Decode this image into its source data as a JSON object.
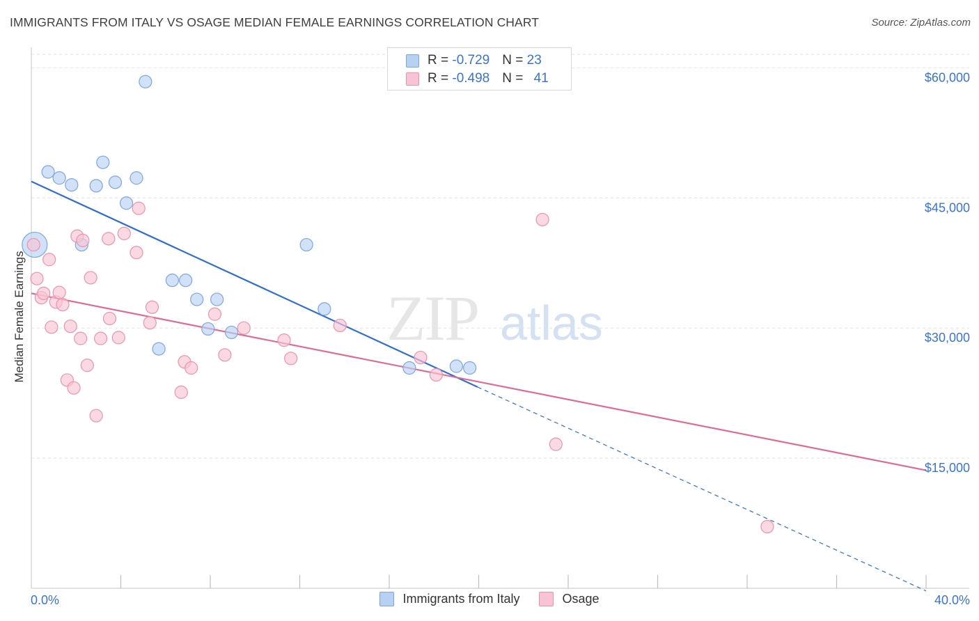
{
  "header": {
    "title": "IMMIGRANTS FROM ITALY VS OSAGE MEDIAN FEMALE EARNINGS CORRELATION CHART",
    "source": "Source: ZipAtlas.com"
  },
  "watermark": {
    "zip": "ZIP",
    "atlas": "atlas"
  },
  "legend": {
    "rows": [
      {
        "r_label": "R = ",
        "r_value": "-0.729",
        "n_label": "N = ",
        "n_value": "23"
      },
      {
        "r_label": "R = ",
        "r_value": "-0.498",
        "n_label": "N = ",
        "n_value": "41"
      }
    ]
  },
  "colors": {
    "italy_fill": "#b8d1f2",
    "italy_stroke": "#7ea6de",
    "italy_line": "#2f6fcf",
    "osage_fill": "#f8c4d4",
    "osage_stroke": "#eb93b0",
    "osage_line": "#e06a93",
    "grid": "#e3e3e3",
    "tick_label": "#3a74d1"
  },
  "chart_data": {
    "type": "scatter",
    "title": "IMMIGRANTS FROM ITALY VS OSAGE MEDIAN FEMALE EARNINGS CORRELATION CHART",
    "xlabel": "",
    "ylabel": "Median Female Earnings",
    "xlim": [
      0,
      40
    ],
    "ylim": [
      0,
      63000
    ],
    "x_tick_labels": [
      {
        "value": 0,
        "label": "0.0%"
      },
      {
        "value": 40,
        "label": "40.0%"
      }
    ],
    "y_ticks": [
      {
        "value": 15000,
        "label": "$15,000"
      },
      {
        "value": 30000,
        "label": "$30,000"
      },
      {
        "value": 45000,
        "label": "$45,000"
      },
      {
        "value": 60000,
        "label": "$60,000"
      }
    ],
    "grid": true,
    "legend_position": "top-center",
    "series": [
      {
        "name": "Immigrants from Italy",
        "color_key": "italy",
        "points": [
          [
            0.15,
            39600,
            18
          ],
          [
            0.75,
            48000,
            9
          ],
          [
            1.25,
            47300,
            9
          ],
          [
            1.8,
            46500,
            9
          ],
          [
            2.25,
            39600,
            9
          ],
          [
            2.9,
            46400,
            9
          ],
          [
            3.2,
            49100,
            9
          ],
          [
            3.75,
            46800,
            9
          ],
          [
            4.25,
            44400,
            9
          ],
          [
            4.7,
            47300,
            9
          ],
          [
            5.1,
            58400,
            9
          ],
          [
            5.7,
            27600,
            9
          ],
          [
            6.3,
            35500,
            9
          ],
          [
            6.9,
            35500,
            9
          ],
          [
            7.4,
            33300,
            9
          ],
          [
            7.9,
            29900,
            9
          ],
          [
            8.3,
            33300,
            9
          ],
          [
            8.95,
            29500,
            9
          ],
          [
            12.3,
            39600,
            9
          ],
          [
            13.1,
            32200,
            9
          ],
          [
            16.9,
            25400,
            9
          ],
          [
            19.0,
            25600,
            9
          ],
          [
            19.6,
            25400,
            9
          ]
        ],
        "trend": {
          "x": [
            0,
            19.95
          ],
          "y": [
            46900,
            23200
          ]
        },
        "trend_extension": {
          "x": [
            19.95,
            40
          ],
          "y": [
            23200,
            -300
          ]
        }
      },
      {
        "name": "Osage",
        "color_key": "osage",
        "points": [
          [
            0.1,
            39600,
            9
          ],
          [
            0.25,
            35700,
            9
          ],
          [
            0.45,
            33500,
            9
          ],
          [
            0.55,
            34000,
            9
          ],
          [
            0.8,
            37900,
            9
          ],
          [
            0.9,
            30100,
            9
          ],
          [
            1.1,
            33000,
            9
          ],
          [
            1.25,
            34100,
            9
          ],
          [
            1.4,
            32700,
            9
          ],
          [
            1.6,
            24000,
            9
          ],
          [
            1.75,
            30200,
            9
          ],
          [
            1.9,
            23100,
            9
          ],
          [
            2.05,
            40600,
            9
          ],
          [
            2.3,
            40100,
            9
          ],
          [
            2.2,
            28800,
            9
          ],
          [
            2.5,
            25700,
            9
          ],
          [
            2.65,
            35800,
            9
          ],
          [
            2.9,
            19900,
            9
          ],
          [
            3.1,
            28800,
            9
          ],
          [
            3.45,
            40300,
            9
          ],
          [
            3.5,
            31100,
            9
          ],
          [
            3.9,
            28900,
            9
          ],
          [
            4.15,
            40900,
            9
          ],
          [
            4.7,
            38700,
            9
          ],
          [
            4.8,
            43800,
            9
          ],
          [
            5.3,
            30600,
            9
          ],
          [
            5.4,
            32400,
            9
          ],
          [
            6.7,
            22600,
            9
          ],
          [
            6.85,
            26100,
            9
          ],
          [
            7.15,
            25400,
            9
          ],
          [
            8.2,
            31600,
            9
          ],
          [
            8.65,
            26900,
            9
          ],
          [
            9.5,
            30000,
            9
          ],
          [
            11.3,
            28600,
            9
          ],
          [
            11.6,
            26500,
            9
          ],
          [
            13.8,
            30300,
            9
          ],
          [
            17.4,
            26600,
            9
          ],
          [
            18.1,
            24600,
            9
          ],
          [
            22.85,
            42500,
            9
          ],
          [
            23.45,
            16600,
            9
          ],
          [
            32.9,
            7100,
            9
          ]
        ],
        "trend": {
          "x": [
            0,
            40
          ],
          "y": [
            34000,
            13600
          ]
        }
      }
    ]
  },
  "bottom_legend": {
    "italy_label": "Immigrants from Italy",
    "osage_label": "Osage"
  }
}
